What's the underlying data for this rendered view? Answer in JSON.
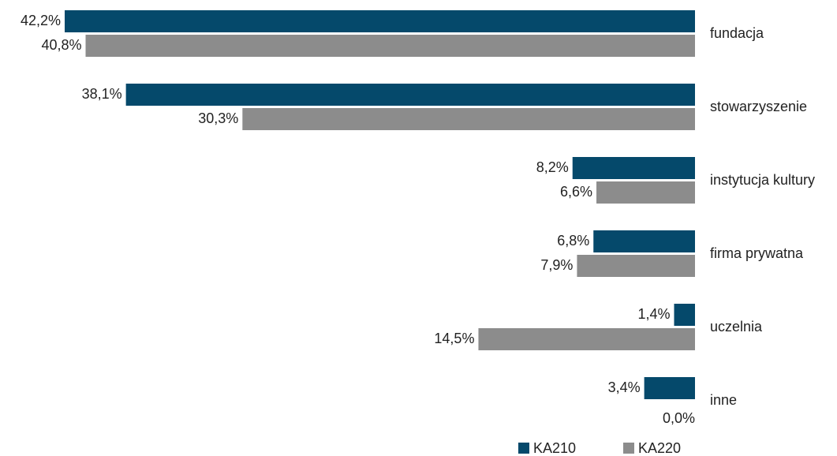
{
  "chart_data": {
    "type": "barh",
    "categories": [
      "fundacja",
      "stowarzyszenie",
      "instytucja kultury",
      "firma prywatna",
      "uczelnia",
      "inne"
    ],
    "series": [
      {
        "name": "KA210",
        "color": "#05496b",
        "values": [
          42.2,
          38.1,
          8.2,
          6.8,
          1.4,
          3.4
        ],
        "value_labels": [
          "42,2%",
          "38,1%",
          "8,2%",
          "6,8%",
          "1,4%",
          "3,4%"
        ]
      },
      {
        "name": "KA220",
        "color": "#8c8c8c",
        "values": [
          40.8,
          30.3,
          6.6,
          7.9,
          14.5,
          0.0
        ],
        "value_labels": [
          "40,8%",
          "30,3%",
          "6,6%",
          "7,9%",
          "14,5%",
          "0,0%"
        ]
      }
    ],
    "legend": "bottom"
  }
}
